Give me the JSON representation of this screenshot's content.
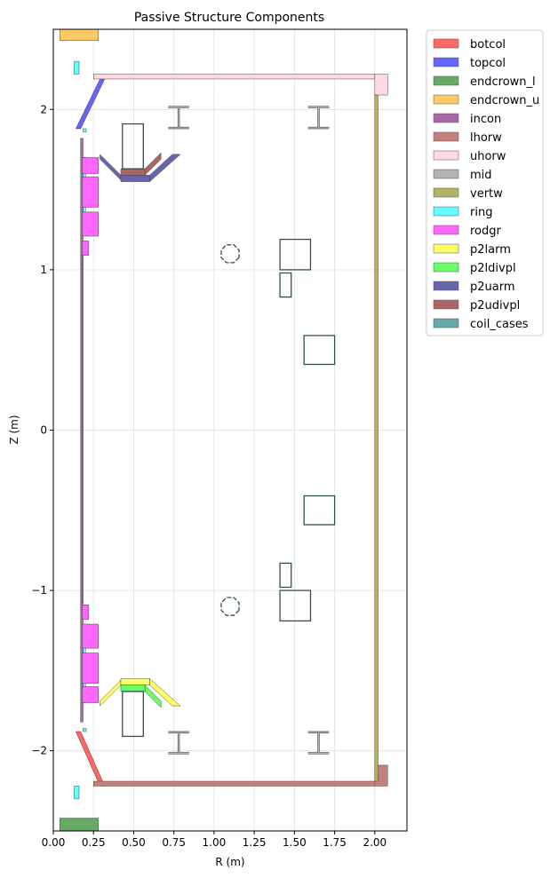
{
  "chart_data": {
    "type": "scatter",
    "title": "Passive Structure Components",
    "xlabel": "R (m)",
    "ylabel": "Z (m)",
    "xlim": [
      0.0,
      2.2
    ],
    "ylim": [
      -2.5,
      2.5
    ],
    "x_ticks": [
      0.0,
      0.25,
      0.5,
      0.75,
      1.0,
      1.25,
      1.5,
      1.75,
      2.0
    ],
    "x_tick_labels": [
      "0.00",
      "0.25",
      "0.50",
      "0.75",
      "1.00",
      "1.25",
      "1.50",
      "1.75",
      "2.00"
    ],
    "y_ticks": [
      -2,
      -1,
      0,
      1,
      2
    ],
    "y_tick_labels": [
      "−2",
      "−1",
      "0",
      "1",
      "2"
    ],
    "grid": true,
    "legend_position": "outside-right",
    "legend": [
      {
        "name": "botcol",
        "color": "#ff6666"
      },
      {
        "name": "topcol",
        "color": "#6666ff"
      },
      {
        "name": "endcrown_l",
        "color": "#66aa66"
      },
      {
        "name": "endcrown_u",
        "color": "#ffc966"
      },
      {
        "name": "incon",
        "color": "#aa66aa"
      },
      {
        "name": "lhorw",
        "color": "#c47f7f"
      },
      {
        "name": "uhorw",
        "color": "#ffd9e0"
      },
      {
        "name": "mid",
        "color": "#b3b3b3"
      },
      {
        "name": "vertw",
        "color": "#b3b366"
      },
      {
        "name": "ring",
        "color": "#66ffff"
      },
      {
        "name": "rodgr",
        "color": "#ff66ff"
      },
      {
        "name": "p2larm",
        "color": "#ffff66"
      },
      {
        "name": "p2ldivpl",
        "color": "#66ff66"
      },
      {
        "name": "p2uarm",
        "color": "#6666aa"
      },
      {
        "name": "p2udivpl",
        "color": "#aa6666"
      },
      {
        "name": "coil_cases",
        "color": "#66aaaa"
      }
    ],
    "components": [
      {
        "name": "botcol",
        "type": "polygon",
        "color": "#ff6666",
        "points": [
          [
            0.14,
            -1.88
          ],
          [
            0.17,
            -1.88
          ],
          [
            0.32,
            -2.22
          ],
          [
            0.29,
            -2.22
          ]
        ]
      },
      {
        "name": "topcol",
        "type": "polygon",
        "color": "#6666ff",
        "points": [
          [
            0.14,
            1.88
          ],
          [
            0.17,
            1.88
          ],
          [
            0.32,
            2.19
          ],
          [
            0.29,
            2.19
          ]
        ]
      },
      {
        "name": "endcrown_l",
        "type": "rect",
        "color": "#66aa66",
        "x0": 0.04,
        "x1": 0.28,
        "y0": -2.5,
        "y1": -2.42
      },
      {
        "name": "endcrown_u",
        "type": "rect",
        "color": "#ffc966",
        "x0": 0.04,
        "x1": 0.28,
        "y0": 2.43,
        "y1": 2.5
      },
      {
        "name": "incon",
        "type": "rect",
        "color": "#aa66aa",
        "x0": 0.17,
        "x1": 0.185,
        "y0": -1.82,
        "y1": 1.82
      },
      {
        "name": "lhorw",
        "type": "rect",
        "color": "#c47f7f",
        "x0": 0.25,
        "x1": 2.0,
        "y0": -2.22,
        "y1": -2.19
      },
      {
        "name": "lhorw",
        "type": "rect",
        "color": "#c47f7f",
        "x0": 2.0,
        "x1": 2.08,
        "y0": -2.22,
        "y1": -2.09
      },
      {
        "name": "uhorw",
        "type": "rect",
        "color": "#ffd9e0",
        "x0": 0.25,
        "x1": 2.0,
        "y0": 2.19,
        "y1": 2.22
      },
      {
        "name": "uhorw",
        "type": "rect",
        "color": "#ffd9e0",
        "x0": 2.0,
        "x1": 2.08,
        "y0": 2.09,
        "y1": 2.22
      },
      {
        "name": "mid",
        "type": "ibeam",
        "color": "#b3b3b3",
        "cx": 0.78,
        "cy": 1.95,
        "half_w": 0.065,
        "half_h": 0.065
      },
      {
        "name": "mid",
        "type": "ibeam",
        "color": "#b3b3b3",
        "cx": 1.65,
        "cy": 1.95,
        "half_w": 0.065,
        "half_h": 0.065
      },
      {
        "name": "mid",
        "type": "ibeam",
        "color": "#b3b3b3",
        "cx": 0.78,
        "cy": -1.95,
        "half_w": 0.065,
        "half_h": 0.065
      },
      {
        "name": "mid",
        "type": "ibeam",
        "color": "#b3b3b3",
        "cx": 1.65,
        "cy": -1.95,
        "half_w": 0.065,
        "half_h": 0.065
      },
      {
        "name": "vertw",
        "type": "rect",
        "color": "#b3b366",
        "x0": 2.0,
        "x1": 2.02,
        "y0": -2.19,
        "y1": 2.09
      },
      {
        "name": "ring",
        "type": "rect",
        "color": "#66ffff",
        "x0": 0.13,
        "x1": 0.16,
        "y0": 2.22,
        "y1": 2.3
      },
      {
        "name": "ring",
        "type": "rect",
        "color": "#66ffff",
        "x0": 0.13,
        "x1": 0.16,
        "y0": -2.3,
        "y1": -2.22
      },
      {
        "name": "ring",
        "type": "rect",
        "color": "#66ffff",
        "x0": 0.185,
        "x1": 0.205,
        "y0": 1.86,
        "y1": 1.88
      },
      {
        "name": "ring",
        "type": "rect",
        "color": "#66ffff",
        "x0": 0.185,
        "x1": 0.205,
        "y0": -1.88,
        "y1": -1.86
      },
      {
        "name": "ring",
        "type": "rect",
        "color": "#66ffff",
        "x0": 0.185,
        "x1": 0.2,
        "y0": 1.22,
        "y1": 1.7
      },
      {
        "name": "ring",
        "type": "rect",
        "color": "#66ffff",
        "x0": 0.185,
        "x1": 0.2,
        "y0": -1.7,
        "y1": -1.22
      },
      {
        "name": "rodgr",
        "type": "rect",
        "color": "#ff66ff",
        "x0": 0.18,
        "x1": 0.28,
        "y0": 1.6,
        "y1": 1.7
      },
      {
        "name": "rodgr",
        "type": "rect",
        "color": "#ff66ff",
        "x0": 0.18,
        "x1": 0.28,
        "y0": 1.39,
        "y1": 1.58
      },
      {
        "name": "rodgr",
        "type": "rect",
        "color": "#ff66ff",
        "x0": 0.18,
        "x1": 0.28,
        "y0": 1.21,
        "y1": 1.36
      },
      {
        "name": "rodgr",
        "type": "rect",
        "color": "#ff66ff",
        "x0": 0.18,
        "x1": 0.22,
        "y0": 1.09,
        "y1": 1.18
      },
      {
        "name": "rodgr",
        "type": "rect",
        "color": "#ff66ff",
        "x0": 0.18,
        "x1": 0.22,
        "y0": -1.18,
        "y1": -1.09
      },
      {
        "name": "rodgr",
        "type": "rect",
        "color": "#ff66ff",
        "x0": 0.18,
        "x1": 0.28,
        "y0": -1.36,
        "y1": -1.21
      },
      {
        "name": "rodgr",
        "type": "rect",
        "color": "#ff66ff",
        "x0": 0.18,
        "x1": 0.28,
        "y0": -1.58,
        "y1": -1.39
      },
      {
        "name": "rodgr",
        "type": "rect",
        "color": "#ff66ff",
        "x0": 0.18,
        "x1": 0.28,
        "y0": -1.7,
        "y1": -1.6
      },
      {
        "name": "rodgr",
        "type": "rect",
        "color": "#ff66ff",
        "x0": 0.18,
        "x1": 0.185,
        "y0": -1.08,
        "y1": 1.08
      },
      {
        "name": "p2larm",
        "type": "polygon",
        "color": "#ffff66",
        "points": [
          [
            0.29,
            -1.72
          ],
          [
            0.42,
            -1.59
          ],
          [
            0.42,
            -1.56
          ],
          [
            0.29,
            -1.69
          ]
        ]
      },
      {
        "name": "p2larm",
        "type": "rect",
        "color": "#ffff66",
        "x0": 0.42,
        "x1": 0.6,
        "y0": -1.59,
        "y1": -1.55
      },
      {
        "name": "p2larm",
        "type": "polygon",
        "color": "#ffff66",
        "points": [
          [
            0.6,
            -1.59
          ],
          [
            0.6,
            -1.55
          ],
          [
            0.79,
            -1.72
          ],
          [
            0.74,
            -1.72
          ]
        ]
      },
      {
        "name": "p2ldivpl",
        "type": "rect",
        "color": "#66ff66",
        "x0": 0.42,
        "x1": 0.57,
        "y0": -1.63,
        "y1": -1.59
      },
      {
        "name": "p2ldivpl",
        "type": "polygon",
        "color": "#66ff66",
        "points": [
          [
            0.57,
            -1.63
          ],
          [
            0.57,
            -1.59
          ],
          [
            0.67,
            -1.69
          ],
          [
            0.67,
            -1.73
          ]
        ]
      },
      {
        "name": "p2uarm",
        "type": "polygon",
        "color": "#6666aa",
        "points": [
          [
            0.29,
            1.72
          ],
          [
            0.42,
            1.59
          ],
          [
            0.42,
            1.56
          ],
          [
            0.29,
            1.69
          ]
        ]
      },
      {
        "name": "p2uarm",
        "type": "rect",
        "color": "#6666aa",
        "x0": 0.42,
        "x1": 0.6,
        "y0": 1.55,
        "y1": 1.59
      },
      {
        "name": "p2uarm",
        "type": "polygon",
        "color": "#6666aa",
        "points": [
          [
            0.6,
            1.59
          ],
          [
            0.6,
            1.55
          ],
          [
            0.79,
            1.72
          ],
          [
            0.74,
            1.72
          ]
        ]
      },
      {
        "name": "p2udivpl",
        "type": "rect",
        "color": "#aa6666",
        "x0": 0.42,
        "x1": 0.57,
        "y0": 1.59,
        "y1": 1.63
      },
      {
        "name": "p2udivpl",
        "type": "polygon",
        "color": "#aa6666",
        "points": [
          [
            0.57,
            1.63
          ],
          [
            0.57,
            1.59
          ],
          [
            0.67,
            1.69
          ],
          [
            0.67,
            1.73
          ]
        ]
      },
      {
        "name": "coil_cases",
        "type": "rect_outline",
        "color": "#66aaaa",
        "x0": 0.43,
        "x1": 0.56,
        "y0": 1.63,
        "y1": 1.91
      },
      {
        "name": "coil_cases",
        "type": "rect_outline",
        "color": "#66aaaa",
        "x0": 0.43,
        "x1": 0.56,
        "y0": -1.91,
        "y1": -1.63
      },
      {
        "name": "coil_cases",
        "type": "rect_outline",
        "color": "#66aaaa",
        "x0": 1.41,
        "x1": 1.6,
        "y0": 1.0,
        "y1": 1.19
      },
      {
        "name": "coil_cases",
        "type": "rect_outline",
        "color": "#66aaaa",
        "x0": 1.41,
        "x1": 1.6,
        "y0": -1.19,
        "y1": -1.0
      },
      {
        "name": "coil_cases",
        "type": "rect_outline",
        "color": "#66aaaa",
        "x0": 1.41,
        "x1": 1.48,
        "y0": 0.83,
        "y1": 0.98
      },
      {
        "name": "coil_cases",
        "type": "rect_outline",
        "color": "#66aaaa",
        "x0": 1.41,
        "x1": 1.48,
        "y0": -0.98,
        "y1": -0.83
      },
      {
        "name": "coil_cases",
        "type": "rect_outline",
        "color": "#66aaaa",
        "x0": 1.56,
        "x1": 1.75,
        "y0": 0.41,
        "y1": 0.59
      },
      {
        "name": "coil_cases",
        "type": "rect_outline",
        "color": "#66aaaa",
        "x0": 1.56,
        "x1": 1.75,
        "y0": -0.59,
        "y1": -0.41
      },
      {
        "name": "coil_cases",
        "type": "octagon",
        "color": "#66aaaa",
        "cx": 1.1,
        "cy": 1.1,
        "r": 0.06
      },
      {
        "name": "coil_cases",
        "type": "octagon",
        "color": "#66aaaa",
        "cx": 1.1,
        "cy": -1.1,
        "r": 0.06
      }
    ]
  }
}
